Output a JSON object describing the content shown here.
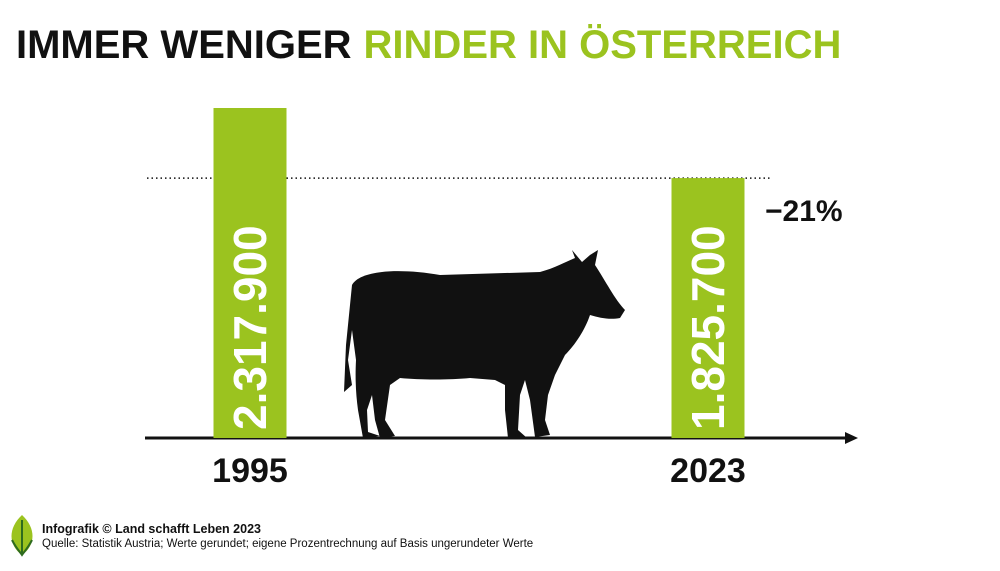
{
  "chart_data": {
    "type": "bar",
    "title": [
      "IMMER WENIGER",
      "RINDER IN ÖSTERREICH"
    ],
    "categories": [
      "1995",
      "2023"
    ],
    "values": [
      2317900,
      1825700
    ],
    "value_labels": [
      "2.317.900",
      "1.825.700"
    ],
    "color": "#9bc31f",
    "annotation": "−21%",
    "footer": [
      "Infografik © Land schafft Leben 2023",
      "Quelle: Statistik Austria; Werte gerundet; eigene Prozentrechnung auf Basis ungerundeter Werte"
    ]
  }
}
